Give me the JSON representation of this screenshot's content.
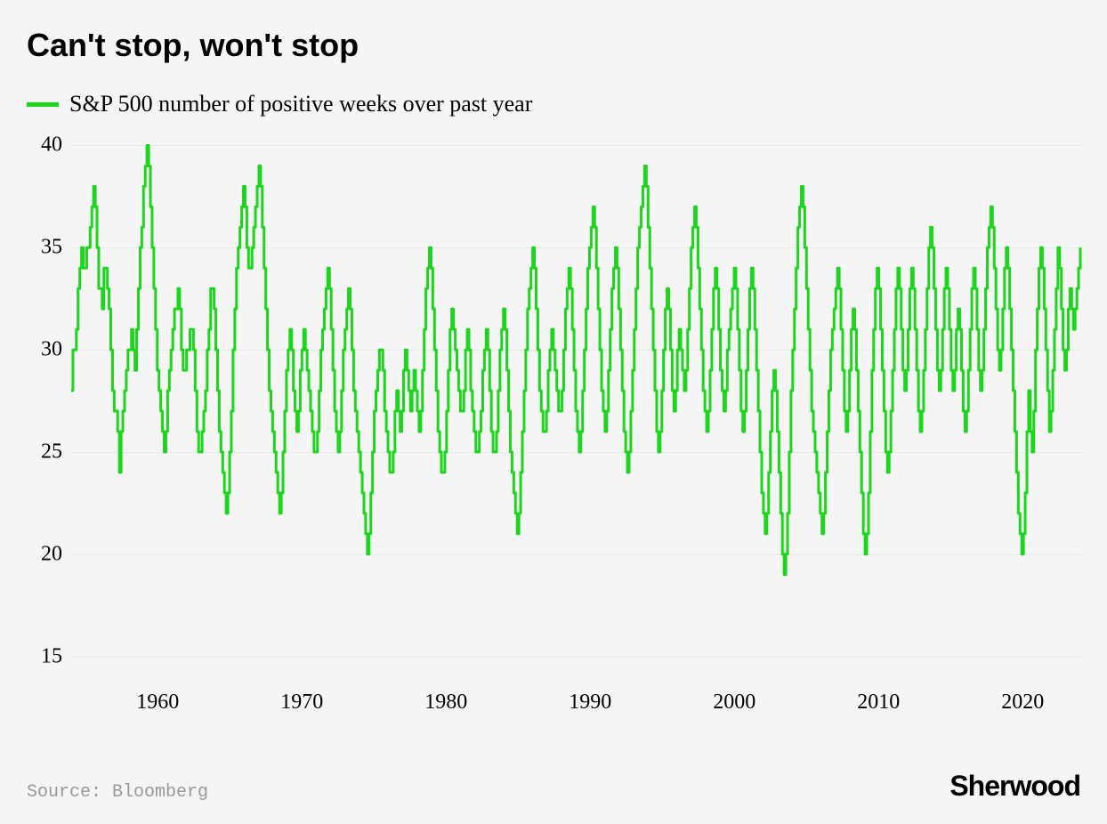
{
  "title": "Can't stop, won't stop",
  "legend": {
    "label": "S&P 500 number of positive weeks over past year",
    "swatch_color": "#1ed51e"
  },
  "source": "Source: Bloomberg",
  "brand": "Sherwood",
  "colors": {
    "background": "#f5f5f5",
    "line": "#1ed51e",
    "grid": "#e8e8e8",
    "tick_text": "#000000",
    "title_text": "#000000",
    "source_text": "#999999"
  },
  "chart": {
    "type": "line",
    "line_width": 3,
    "x_start_year": 1954,
    "x_end_year": 2024,
    "ylim": [
      13.5,
      40.5
    ],
    "y_ticks": [
      15,
      20,
      25,
      30,
      35,
      40
    ],
    "x_ticks": [
      1960,
      1970,
      1980,
      1990,
      2000,
      2010,
      2020
    ],
    "gridline_color": "#e8e8e8",
    "values": [
      28,
      30,
      30,
      31,
      33,
      34,
      35,
      34,
      34,
      35,
      35,
      36,
      37,
      38,
      37,
      35,
      33,
      33,
      32,
      34,
      34,
      33,
      32,
      30,
      28,
      27,
      27,
      26,
      24,
      26,
      27,
      28,
      29,
      30,
      30,
      31,
      30,
      29,
      31,
      33,
      35,
      36,
      38,
      39,
      40,
      39,
      37,
      35,
      33,
      31,
      29,
      28,
      27,
      26,
      25,
      26,
      28,
      29,
      30,
      31,
      32,
      32,
      33,
      32,
      30,
      29,
      29,
      30,
      30,
      31,
      31,
      30,
      28,
      26,
      25,
      25,
      26,
      27,
      28,
      30,
      31,
      33,
      33,
      32,
      30,
      28,
      26,
      25,
      24,
      23,
      22,
      23,
      25,
      27,
      30,
      32,
      34,
      35,
      36,
      37,
      38,
      37,
      35,
      34,
      34,
      35,
      36,
      37,
      38,
      39,
      38,
      36,
      34,
      32,
      30,
      28,
      27,
      26,
      25,
      24,
      23,
      22,
      23,
      25,
      27,
      29,
      30,
      31,
      30,
      28,
      27,
      26,
      27,
      29,
      30,
      31,
      30,
      29,
      28,
      27,
      26,
      25,
      25,
      26,
      28,
      30,
      31,
      32,
      33,
      34,
      33,
      31,
      29,
      27,
      26,
      25,
      26,
      28,
      30,
      31,
      32,
      33,
      32,
      30,
      28,
      27,
      26,
      25,
      24,
      23,
      22,
      21,
      20,
      21,
      23,
      25,
      27,
      28,
      29,
      30,
      30,
      29,
      27,
      26,
      25,
      24,
      24,
      25,
      27,
      28,
      27,
      26,
      27,
      29,
      30,
      29,
      28,
      27,
      28,
      29,
      28,
      27,
      26,
      27,
      29,
      31,
      33,
      34,
      35,
      34,
      32,
      30,
      28,
      26,
      25,
      24,
      24,
      25,
      27,
      29,
      31,
      32,
      31,
      30,
      29,
      28,
      27,
      27,
      28,
      30,
      31,
      30,
      28,
      27,
      26,
      25,
      25,
      26,
      27,
      29,
      30,
      31,
      30,
      28,
      26,
      25,
      25,
      26,
      28,
      30,
      31,
      32,
      31,
      29,
      27,
      25,
      24,
      23,
      22,
      21,
      22,
      24,
      26,
      28,
      30,
      32,
      33,
      34,
      35,
      34,
      32,
      30,
      28,
      27,
      26,
      26,
      27,
      29,
      30,
      31,
      30,
      29,
      28,
      27,
      27,
      28,
      30,
      32,
      33,
      34,
      33,
      31,
      29,
      27,
      26,
      25,
      26,
      28,
      30,
      32,
      34,
      35,
      36,
      37,
      36,
      34,
      32,
      30,
      28,
      27,
      26,
      27,
      29,
      31,
      33,
      34,
      35,
      34,
      32,
      30,
      28,
      26,
      25,
      24,
      25,
      27,
      29,
      31,
      33,
      35,
      36,
      37,
      38,
      39,
      38,
      36,
      34,
      32,
      30,
      28,
      26,
      25,
      26,
      28,
      30,
      32,
      33,
      32,
      30,
      28,
      27,
      28,
      30,
      31,
      30,
      29,
      28,
      29,
      31,
      33,
      35,
      36,
      37,
      36,
      34,
      32,
      30,
      28,
      27,
      26,
      27,
      29,
      31,
      33,
      34,
      33,
      31,
      29,
      28,
      27,
      28,
      30,
      31,
      32,
      33,
      34,
      33,
      31,
      29,
      27,
      26,
      27,
      29,
      31,
      33,
      34,
      33,
      31,
      29,
      27,
      25,
      23,
      22,
      21,
      22,
      24,
      26,
      28,
      29,
      28,
      26,
      24,
      22,
      20,
      19,
      20,
      22,
      25,
      28,
      30,
      32,
      34,
      36,
      37,
      38,
      37,
      35,
      33,
      31,
      29,
      27,
      26,
      25,
      24,
      23,
      22,
      21,
      22,
      24,
      26,
      28,
      30,
      31,
      32,
      33,
      34,
      33,
      31,
      29,
      27,
      26,
      27,
      29,
      31,
      32,
      31,
      29,
      27,
      25,
      23,
      21,
      20,
      21,
      23,
      26,
      29,
      31,
      33,
      34,
      33,
      31,
      29,
      27,
      25,
      24,
      25,
      27,
      29,
      31,
      33,
      34,
      33,
      31,
      29,
      28,
      29,
      31,
      33,
      34,
      33,
      31,
      29,
      27,
      26,
      27,
      29,
      31,
      33,
      35,
      36,
      35,
      33,
      31,
      29,
      28,
      29,
      31,
      33,
      34,
      33,
      31,
      29,
      28,
      29,
      31,
      32,
      31,
      29,
      27,
      26,
      27,
      29,
      31,
      33,
      34,
      33,
      31,
      29,
      28,
      29,
      31,
      33,
      35,
      36,
      37,
      36,
      34,
      32,
      30,
      29,
      30,
      32,
      34,
      35,
      34,
      32,
      30,
      28,
      26,
      24,
      22,
      21,
      20,
      21,
      23,
      26,
      28,
      26,
      25,
      27,
      30,
      32,
      34,
      35,
      34,
      32,
      30,
      28,
      26,
      27,
      29,
      31,
      33,
      35,
      34,
      32,
      30,
      29,
      30,
      32,
      33,
      32,
      31,
      32,
      33,
      34,
      35
    ]
  }
}
